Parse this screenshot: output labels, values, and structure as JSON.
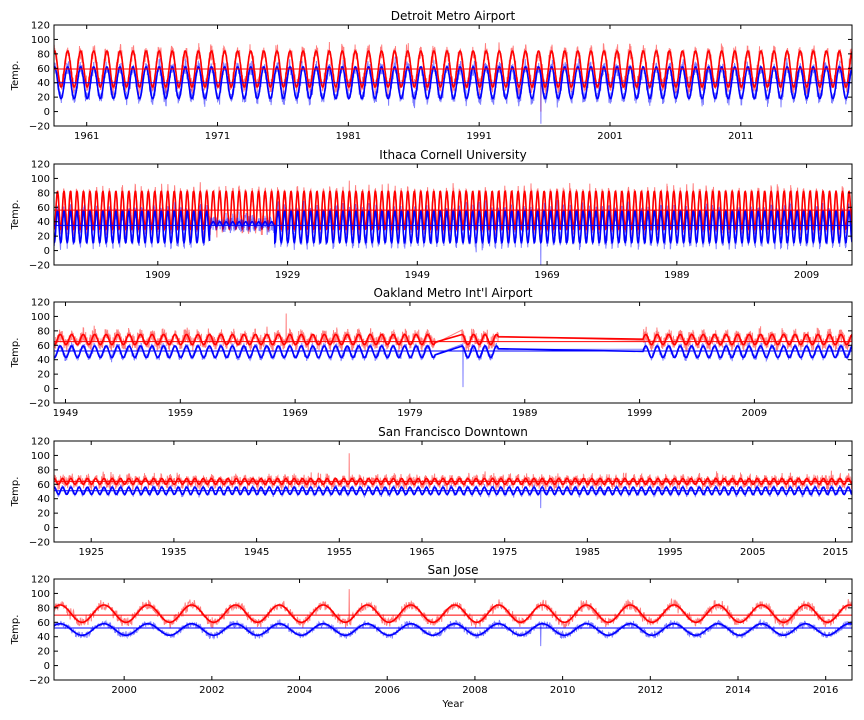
{
  "colors": {
    "high": "#ff0000",
    "low": "#0000ff",
    "background": "#ffffff",
    "axes": "#000000"
  },
  "chart_data": [
    {
      "type": "line",
      "title": "Detroit Metro Airport",
      "ylabel": "Temp.",
      "xlabel": "",
      "xlim": [
        1958.5,
        2019.5
      ],
      "ylim": [
        -20,
        120
      ],
      "yticks": [
        -20,
        0,
        20,
        40,
        60,
        80,
        100,
        120
      ],
      "xticks": [
        1961,
        1971,
        1981,
        1991,
        2001,
        2011
      ],
      "xtick_labels": [
        "1961",
        "1971",
        "1981",
        "1991",
        "2001",
        "2011"
      ],
      "grid": false,
      "series": [
        {
          "role": "daily high",
          "color": "#ff0000",
          "x_range": [
            1958.5,
            2019.5
          ],
          "mean": 59,
          "amplitude": 25,
          "noise": 9,
          "minimum_reading": 0
        },
        {
          "role": "daily low",
          "color": "#0000ff",
          "x_range": [
            1958.5,
            2019.5
          ],
          "mean": 40,
          "amplitude": 22,
          "noise": 9,
          "minimum_reading": -17
        }
      ],
      "reference_lines": [
        {
          "series": "high",
          "y": 59
        },
        {
          "series": "low",
          "y": 40
        }
      ]
    },
    {
      "type": "line",
      "title": "Ithaca Cornell University",
      "ylabel": "Temp.",
      "xlabel": "",
      "xlim": [
        1893,
        2016
      ],
      "ylim": [
        -20,
        120
      ],
      "yticks": [
        -20,
        0,
        20,
        40,
        60,
        80,
        100,
        120
      ],
      "xticks": [
        1909,
        1929,
        1949,
        1969,
        1989,
        2009
      ],
      "xtick_labels": [
        "1909",
        "1929",
        "1949",
        "1969",
        "1989",
        "2009"
      ],
      "grid": false,
      "series": [
        {
          "role": "daily high",
          "color": "#ff0000",
          "x_range": [
            1893,
            2016
          ],
          "mean": 56,
          "amplitude": 26,
          "noise": 9,
          "maximum_reading": 97
        },
        {
          "role": "daily low",
          "color": "#0000ff",
          "x_range": [
            1893,
            2016
          ],
          "mean": 33,
          "amplitude": 22,
          "noise": 10,
          "minimum_reading": -20,
          "flat_period": [
            1917,
            1927
          ]
        }
      ],
      "reference_lines": [
        {
          "series": "high",
          "y": 56
        },
        {
          "series": "low",
          "y": 35
        }
      ]
    },
    {
      "type": "line",
      "title": "Oakland Metro Int'l Airport",
      "ylabel": "Temp.",
      "xlabel": "",
      "xlim": [
        1948,
        2017.5
      ],
      "ylim": [
        -20,
        120
      ],
      "yticks": [
        -20,
        0,
        20,
        40,
        60,
        80,
        100,
        120
      ],
      "xticks": [
        1949,
        1959,
        1969,
        1979,
        1989,
        1999,
        2009
      ],
      "xtick_labels": [
        "1949",
        "1959",
        "1969",
        "1979",
        "1989",
        "1999",
        "2009"
      ],
      "grid": false,
      "data_segments": [
        [
          1948,
          1981.2
        ],
        [
          1983.5,
          1986.7
        ],
        [
          1999.3,
          2017.5
        ]
      ],
      "series": [
        {
          "role": "daily high",
          "color": "#ff0000",
          "mean": 68,
          "amplitude": 7,
          "noise": 8,
          "maximum_reading": 104
        },
        {
          "role": "daily low",
          "color": "#0000ff",
          "mean": 51,
          "amplitude": 8,
          "noise": 4,
          "minimum_reading": 2
        }
      ],
      "reference_lines": [
        {
          "series": "high",
          "y": 65
        },
        {
          "series": "low",
          "y": 52
        }
      ]
    },
    {
      "type": "line",
      "title": "San Francisco Downtown",
      "ylabel": "Temp.",
      "xlabel": "",
      "xlim": [
        1920.5,
        2017
      ],
      "ylim": [
        -20,
        120
      ],
      "yticks": [
        -20,
        0,
        20,
        40,
        60,
        80,
        100,
        120
      ],
      "xticks": [
        1925,
        1935,
        1945,
        1955,
        1965,
        1975,
        1985,
        1995,
        2005,
        2015
      ],
      "xtick_labels": [
        "1925",
        "1935",
        "1945",
        "1955",
        "1965",
        "1975",
        "1985",
        "1995",
        "2005",
        "2015"
      ],
      "grid": false,
      "series": [
        {
          "role": "daily high",
          "color": "#ff0000",
          "x_range": [
            1920.5,
            2017
          ],
          "mean": 64,
          "amplitude": 4,
          "noise": 7,
          "maximum_reading": 103
        },
        {
          "role": "daily low",
          "color": "#0000ff",
          "x_range": [
            1920.5,
            2017
          ],
          "mean": 51,
          "amplitude": 5,
          "noise": 3,
          "minimum_reading": 27
        }
      ],
      "reference_lines": [
        {
          "series": "high",
          "y": 64
        },
        {
          "series": "low",
          "y": 51
        }
      ]
    },
    {
      "type": "line",
      "title": "San Jose",
      "ylabel": "Temp.",
      "xlabel": "Year",
      "xlim": [
        1998.4,
        2016.6
      ],
      "ylim": [
        -20,
        120
      ],
      "yticks": [
        -20,
        0,
        20,
        40,
        60,
        80,
        100,
        120
      ],
      "xticks": [
        2000,
        2002,
        2004,
        2006,
        2008,
        2010,
        2012,
        2014,
        2016
      ],
      "xtick_labels": [
        "2000",
        "2002",
        "2004",
        "2006",
        "2008",
        "2010",
        "2012",
        "2014",
        "2016"
      ],
      "grid": false,
      "series": [
        {
          "role": "daily high",
          "color": "#ff0000",
          "x_range": [
            1998.4,
            2016.6
          ],
          "mean": 72,
          "amplitude": 12,
          "noise": 6,
          "maximum_reading": 106
        },
        {
          "role": "daily low",
          "color": "#0000ff",
          "x_range": [
            1998.4,
            2016.6
          ],
          "mean": 50,
          "amplitude": 8,
          "noise": 4,
          "minimum_reading": 27
        }
      ],
      "reference_lines": [
        {
          "series": "high",
          "y": 70
        },
        {
          "series": "low",
          "y": 52
        }
      ]
    }
  ]
}
